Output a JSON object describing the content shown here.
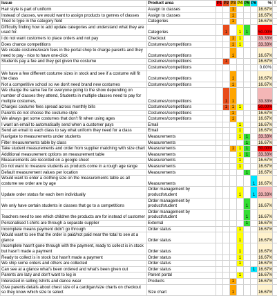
{
  "header": {
    "issue": "Issue",
    "area": "Product area",
    "p": [
      "P1",
      "P2",
      "P3",
      "P4",
      "P5",
      "P6"
    ],
    "pct": "%",
    "flag": "!"
  },
  "p_colors": [
    "#ff0000",
    "#e84c1a",
    "#ffa500",
    "#ffff00",
    "#33dd33",
    "#00e5ff"
  ],
  "rows": [
    {
      "issue": "Hair style is part of uniform",
      "area": "Assign to classes",
      "p": [
        null,
        null,
        1,
        null,
        null,
        null
      ],
      "pct": "16.67%"
    },
    {
      "issue": "Instead of classes, we would want to assign products to genres of classes",
      "area": "Assign to classes",
      "p": [
        null,
        null,
        1,
        null,
        null,
        null
      ],
      "pct": "16.67%"
    },
    {
      "issue": "Tried to type in the category field",
      "area": "Categories",
      "p": [
        null,
        null,
        1,
        null,
        null,
        null
      ],
      "pct": "16.67%"
    },
    {
      "issue": "Difficulty finding how to add update categories and understand what they are used for.",
      "area": "Categories",
      "p": [
        null,
        1,
        null,
        1,
        1,
        null
      ],
      "pct": "50.00%"
    },
    {
      "issue": "I do not want customers to place orders and not pay",
      "area": "Checkout",
      "p": [
        null,
        null,
        1,
        1,
        null,
        null
      ],
      "pct": "33.33%"
    },
    {
      "issue": "Does chance competitions",
      "area": "Costumes/competitions",
      "p": [
        null,
        null,
        1,
        1,
        null,
        null
      ],
      "pct": "33.33%"
    },
    {
      "issue": "We create costume/exam fees in the portal shop to charge parents and they need to pay - nice to have one-click",
      "area": "Costumes/competitions",
      "p": [
        null,
        null,
        1,
        null,
        null,
        null
      ],
      "pct": "16.67%"
    },
    {
      "issue": "Students pay a fee and they get given the costume",
      "area": "Costumes/competitions",
      "p": [
        null,
        1,
        null,
        null,
        null,
        null
      ],
      "pct": "16.67%"
    },
    {
      "issue": null,
      "area": "Costumes/competitions",
      "p": [
        null,
        null,
        null,
        null,
        null,
        null
      ],
      "pct": "0.00%"
    },
    {
      "issue": "We have a few different costume sizes in stock and see if a costume will fit the class",
      "area": "Costumes/competitions",
      "p": [
        null,
        null,
        1,
        null,
        null,
        null
      ],
      "pct": "16.67%"
    },
    {
      "issue": "Not a competitive school so we don't need brand new costumes",
      "area": "Costumes/competitions",
      "p": [
        null,
        null,
        1,
        null,
        null,
        null
      ],
      "pct": "16.67%"
    },
    {
      "issue": "We charge the same fee for everyone going to the show depending on number of classes they attend, Students in multiple classes need to pay for multiple costumes,",
      "area": "Costumes/competitions",
      "p": [
        null,
        1,
        1,
        null,
        null,
        null
      ],
      "pct": "33.33%"
    },
    {
      "issue": "Charges costume fees spread across monthly bills",
      "area": "Costumes/competitions",
      "p": [
        null,
        1,
        1,
        1,
        null,
        null
      ],
      "pct": "50.00%"
    },
    {
      "issue": "Parents do not choose the costume style",
      "area": "Costumes/competitions",
      "p": [
        null,
        null,
        1,
        null,
        null,
        null
      ],
      "pct": "16.67%"
    },
    {
      "issue": "We always get some costumes that don't fit when using ages",
      "area": "Costumes/competitions",
      "p": [
        null,
        null,
        1,
        null,
        null,
        null
      ],
      "pct": "16.67%"
    },
    {
      "issue": "I want an email to automatically send when a customer pays",
      "area": "Email",
      "p": [
        null,
        null,
        null,
        1,
        null,
        null
      ],
      "pct": "16.67%"
    },
    {
      "issue": "Send an email to each class to say what uniform they need for a class",
      "area": "Email",
      "p": [
        null,
        null,
        null,
        1,
        null,
        null
      ],
      "pct": "16.67%"
    },
    {
      "issue": "Navigate to measurements under students",
      "area": "Measurements",
      "p": [
        null,
        null,
        null,
        1,
        1,
        null
      ],
      "pct": "33.33%"
    },
    {
      "issue": "Filter measurements table by class",
      "area": "Measurements",
      "p": [
        null,
        null,
        null,
        null,
        1,
        null
      ],
      "pct": "16.67%"
    },
    {
      "issue": "Take student measurements and order from supplier matching with size chart",
      "area": "Measurements",
      "p": [
        null,
        null,
        1,
        1,
        1,
        null
      ],
      "pct": "50.00%"
    },
    {
      "issue": "Additional measurement options on measurement table",
      "area": "Measurements",
      "p": [
        null,
        null,
        null,
        1,
        1,
        null
      ],
      "pct": "33.33%"
    },
    {
      "issue": "Measurements are recorded on a google sheet",
      "area": "Measurements",
      "p": [
        null,
        null,
        null,
        1,
        null,
        null
      ],
      "pct": "16.67%"
    },
    {
      "issue": "Do not want to measure students as products come in a rough age range",
      "area": "Measurements",
      "p": [
        null,
        null,
        null,
        1,
        null,
        null
      ],
      "pct": "16.67%"
    },
    {
      "issue": "Default measurement values per location",
      "area": "Measurements",
      "p": [
        null,
        null,
        null,
        null,
        1,
        null
      ],
      "pct": "16.67%"
    },
    {
      "issue": "Would want to enter a clothing size on the measurements table as all costume we order are by age",
      "area": "Measurements",
      "p": [
        null,
        null,
        null,
        null,
        null,
        1
      ],
      "pct": "16.67%"
    },
    {
      "issue": "Update order status for each item individually",
      "area": "Order management by product/student",
      "p": [
        null,
        null,
        null,
        1,
        null,
        1
      ],
      "pct": "33.33%"
    },
    {
      "issue": "We only have certain students in classes that go to a competitions",
      "area": "Order management by product/student",
      "p": [
        null,
        null,
        null,
        null,
        1,
        null
      ],
      "pct": "16.67%"
    },
    {
      "issue": "Teachers need to see which children the products are for instead of customer",
      "area": "Order management by product/student",
      "p": [
        null,
        null,
        null,
        null,
        1,
        null
      ],
      "pct": "16.67%"
    },
    {
      "issue": "Personalised t-shirts are through a separate supplier",
      "area": "External",
      "p": [
        null,
        null,
        null,
        null,
        1,
        null
      ],
      "pct": "16.67%"
    },
    {
      "issue": "Incomplete means payment didn't go through",
      "area": "Order status",
      "p": [
        null,
        null,
        null,
        1,
        null,
        null
      ],
      "pct": "16.67%"
    },
    {
      "issue": "Would want to see that the order is paid/not paid near the total to see at a glance",
      "area": "Order status",
      "p": [
        null,
        null,
        null,
        1,
        null,
        null
      ],
      "pct": "16.67%"
    },
    {
      "issue": "Incomplete hasn't gone through with the payment, ready to collect is in stock but hasn't made a payment",
      "area": "Order status",
      "p": [
        null,
        null,
        null,
        1,
        null,
        null
      ],
      "pct": "16.67%"
    },
    {
      "issue": "Ready to collect is in stock but hasn't made a payment",
      "area": "Order status",
      "p": [
        null,
        null,
        null,
        1,
        null,
        null
      ],
      "pct": "16.67%"
    },
    {
      "issue": "We ship some orders and others are collected",
      "area": "Order status",
      "p": [
        null,
        null,
        null,
        1,
        null,
        null
      ],
      "pct": "16.67%"
    },
    {
      "issue": "Can see at a glance what's been ordered and what's been given out",
      "area": "Order status",
      "p": [
        null,
        null,
        null,
        null,
        null,
        1
      ],
      "pct": "16.67%"
    },
    {
      "issue": "Parents are lazy and don't want to log in",
      "area": "Parent portal",
      "p": [
        null,
        null,
        null,
        1,
        null,
        null
      ],
      "pct": "16.67%"
    },
    {
      "issue": "Interested in selling tshirts and dance wear",
      "area": "Products",
      "p": [
        null,
        null,
        1,
        null,
        null,
        null
      ],
      "pct": "16.67%"
    },
    {
      "issue": "Give parents details about chest size of a cardigan/size charts on checkout so they know which size to select",
      "area": "Size chart",
      "p": [
        null,
        null,
        1,
        null,
        null,
        null
      ],
      "pct": "16.67%"
    }
  ]
}
